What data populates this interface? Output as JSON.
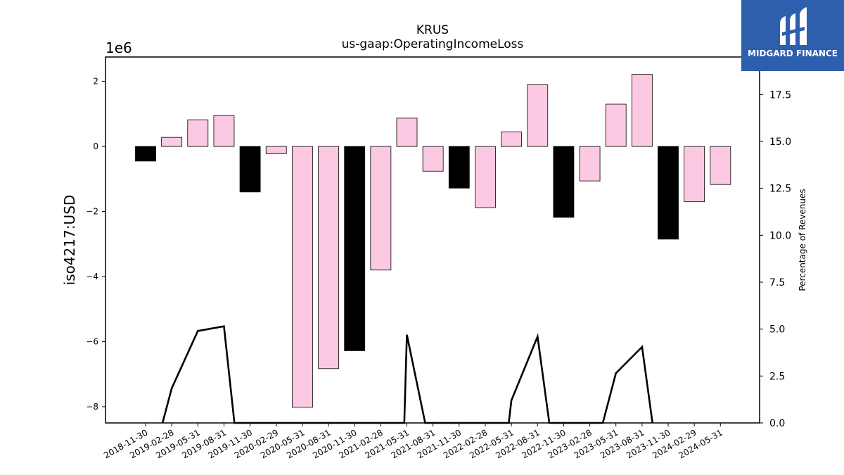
{
  "chart_data": {
    "type": "bar",
    "title": "KRUS",
    "subtitle": "us-gaap:OperatingIncomeLoss",
    "ylabel": "iso4217:USD",
    "ylabel_right": "Percentage of Revenues",
    "y_offset_label": "1e6",
    "ylim": [
      -8.5,
      2.75
    ],
    "ylim_right": [
      0,
      19.5
    ],
    "yticks": [
      2,
      0,
      -2,
      -4,
      -6,
      -8
    ],
    "yticks_right": [
      "0.0",
      "2.5",
      "5.0",
      "7.5",
      "10.0",
      "12.5",
      "15.0",
      "17.5"
    ],
    "categories": [
      "2018-11-30",
      "2019-02-28",
      "2019-05-31",
      "2019-08-31",
      "2019-11-30",
      "2020-02-29",
      "2020-05-31",
      "2020-08-31",
      "2020-11-30",
      "2021-02-28",
      "2021-05-31",
      "2021-08-31",
      "2021-11-30",
      "2022-02-28",
      "2022-05-31",
      "2022-08-31",
      "2022-11-30",
      "2023-02-28",
      "2023-05-31",
      "2023-08-31",
      "2023-11-30",
      "2024-02-29",
      "2024-05-31"
    ],
    "values": [
      -0.45,
      0.28,
      0.82,
      0.95,
      -1.4,
      -0.22,
      -8.02,
      -6.83,
      -6.28,
      -3.8,
      0.87,
      -0.76,
      -1.28,
      -1.88,
      0.45,
      1.9,
      -2.18,
      -1.06,
      1.3,
      2.22,
      -2.85,
      -1.7,
      -1.17
    ],
    "bar_colors": [
      "#000000",
      "#fcc9e3",
      "#fcc9e3",
      "#fcc9e3",
      "#000000",
      "#fcc9e3",
      "#fcc9e3",
      "#fcc9e3",
      "#000000",
      "#fcc9e3",
      "#fcc9e3",
      "#fcc9e3",
      "#000000",
      "#fcc9e3",
      "#fcc9e3",
      "#fcc9e3",
      "#000000",
      "#fcc9e3",
      "#fcc9e3",
      "#fcc9e3",
      "#000000",
      "#fcc9e3",
      "#fcc9e3"
    ],
    "line_series": {
      "x": [
        0.65,
        1,
        2,
        3,
        3.4,
        9.9,
        10,
        10.7,
        13.9,
        14,
        15,
        15.45,
        17.5,
        18,
        19,
        19.4
      ],
      "y": [
        0,
        1.85,
        4.9,
        5.15,
        0,
        0,
        4.7,
        0,
        0,
        1.2,
        4.6,
        0,
        0,
        2.65,
        4.05,
        0
      ]
    },
    "grid": false,
    "legend": "none"
  },
  "logo": {
    "text": "MIDGARD FINANCE",
    "color": "#2d5fae"
  }
}
